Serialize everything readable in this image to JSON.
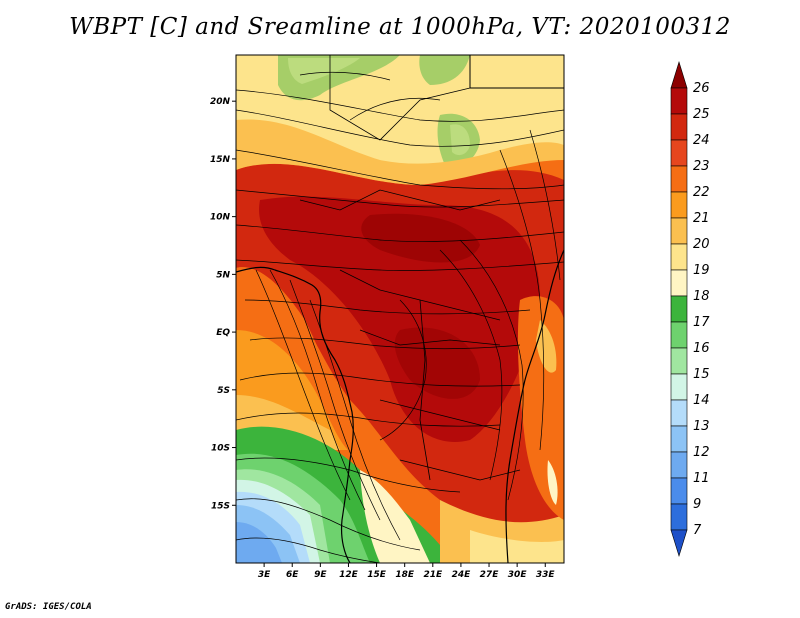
{
  "title": "WBPT [C] and Sreamline at 1000hPa, VT: 2020100312",
  "footer": "GrADS: IGES/COLA",
  "map": {
    "variable": "WBPT",
    "units": "C",
    "level": "1000hPa",
    "lon_range": [
      0,
      35
    ],
    "lat_range": [
      -20,
      24
    ],
    "lon_ticks": [
      "3E",
      "6E",
      "9E",
      "12E",
      "15E",
      "18E",
      "21E",
      "24E",
      "27E",
      "30E",
      "33E"
    ],
    "lat_ticks": [
      "20N",
      "15N",
      "10N",
      "5N",
      "EQ",
      "5S",
      "10S",
      "15S"
    ]
  },
  "colorbar": {
    "labels": [
      "26",
      "25",
      "24",
      "23",
      "22",
      "21",
      "20",
      "19",
      "18",
      "17",
      "16",
      "15",
      "14",
      "13",
      "12",
      "11",
      "9",
      "7"
    ],
    "colors": [
      "#8c0000",
      "#b40a0a",
      "#d2280f",
      "#e6461e",
      "#f56e14",
      "#fa9b1e",
      "#fbc050",
      "#fde48c",
      "#fff5c4",
      "#3cb43c",
      "#6ed26e",
      "#a0e6a0",
      "#d2f5e6",
      "#b4dcfa",
      "#8cc3f5",
      "#6eaaf0",
      "#4b8ceb",
      "#2d6edc",
      "#1e50c8"
    ]
  }
}
